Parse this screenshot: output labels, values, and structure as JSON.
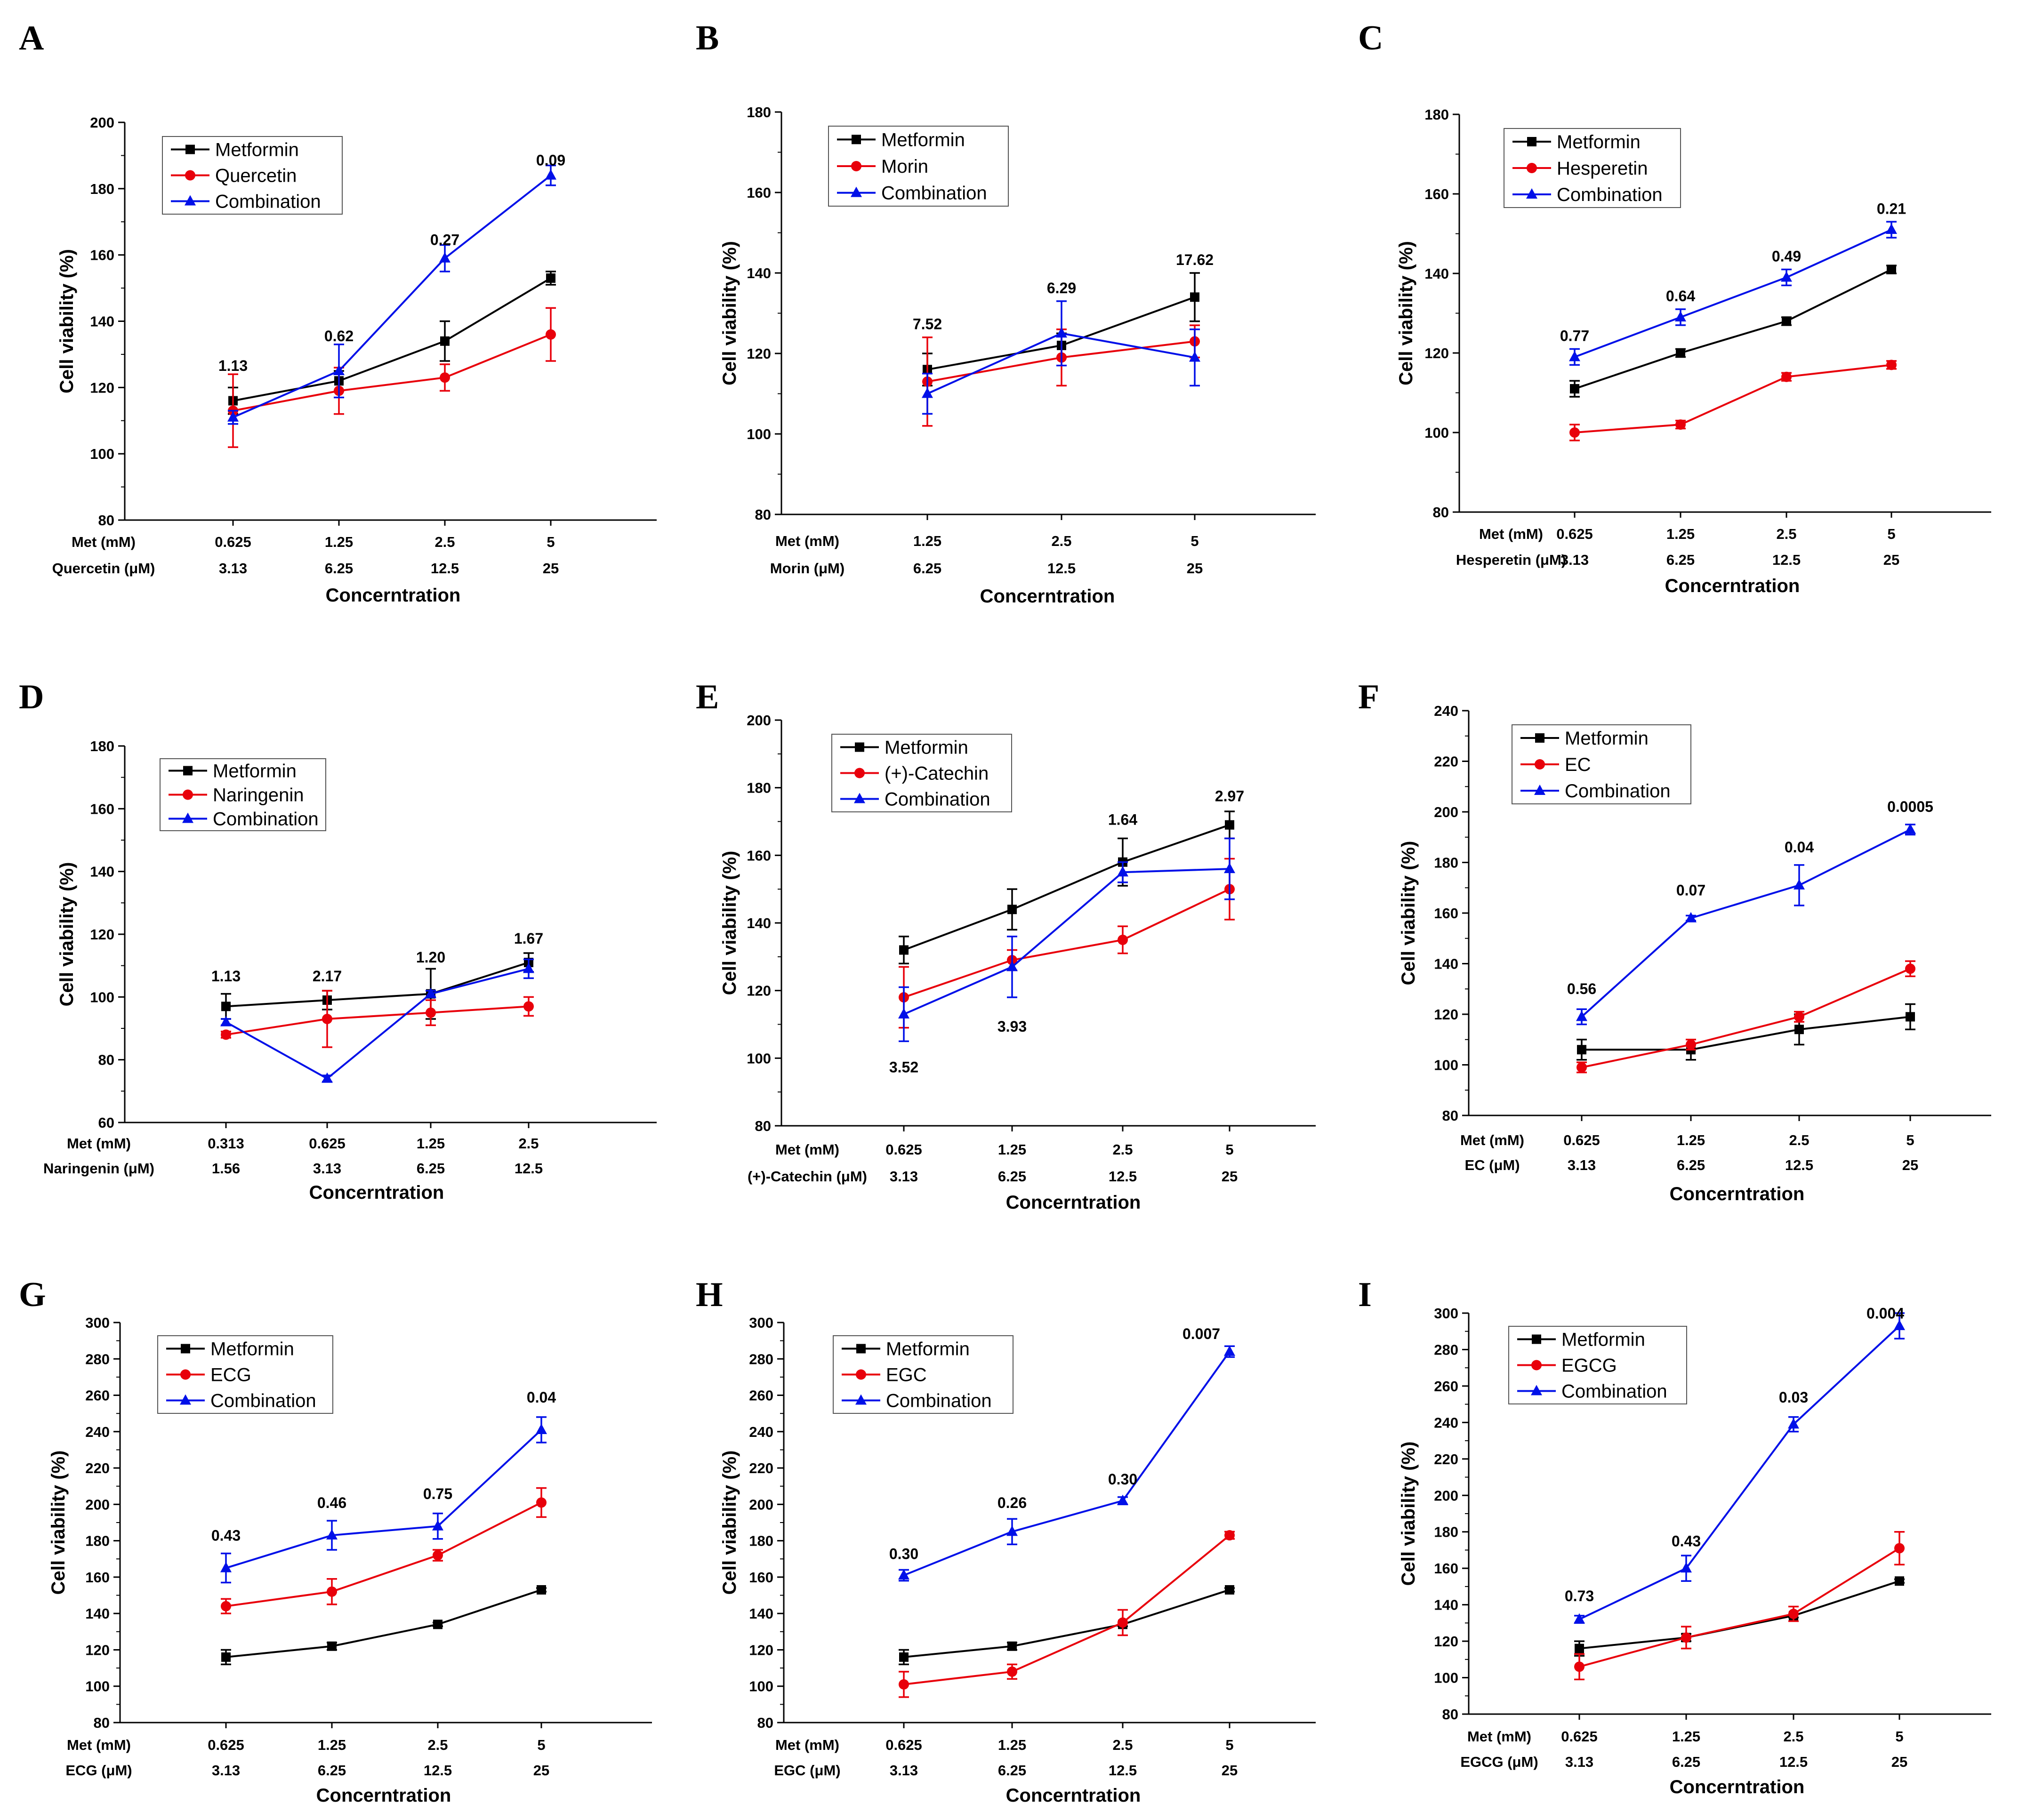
{
  "colors": {
    "metformin": "#000000",
    "flavonoid": "#e8000b",
    "combination": "#0010e8"
  },
  "xtitle": "Concerntration",
  "chart_data": [
    {
      "letter": "A",
      "type": "line",
      "ylabel": "Cell viability (%)",
      "xlabel": "Concerntration",
      "ylim": [
        80,
        200
      ],
      "yticks": [
        "80",
        "100",
        "120",
        "140",
        "160",
        "180",
        "200"
      ],
      "row1": {
        "name": "Met (mM)",
        "ticks": [
          "0.625",
          "1.25",
          "2.5",
          "5"
        ]
      },
      "row2": {
        "name": "Quercetin (μM)",
        "ticks": [
          "3.13",
          "6.25",
          "12.5",
          "25"
        ]
      },
      "legend": [
        "Metformin",
        "Quercetin",
        "Combination"
      ],
      "series": [
        {
          "name": "Metformin",
          "marker": "square",
          "values": [
            116,
            122,
            134,
            153
          ],
          "errors": [
            4,
            3,
            6,
            2
          ]
        },
        {
          "name": "Quercetin",
          "marker": "circle",
          "values": [
            113,
            119,
            123,
            136
          ],
          "errors": [
            11,
            7,
            4,
            8
          ]
        },
        {
          "name": "Combination",
          "marker": "triangle",
          "values": [
            111,
            125,
            159,
            184
          ],
          "errors": [
            2,
            8,
            4,
            3
          ]
        }
      ],
      "annotations": [
        {
          "i": 0,
          "text": "1.13",
          "y": 125,
          "pos": "above"
        },
        {
          "i": 1,
          "text": "0.62",
          "y": 134,
          "pos": "above"
        },
        {
          "i": 2,
          "text": "0.27",
          "y": 163,
          "pos": "above"
        },
        {
          "i": 3,
          "text": "0.09",
          "y": 187,
          "pos": "above"
        }
      ]
    },
    {
      "letter": "B",
      "type": "line",
      "ylabel": "Cell viability (%)",
      "xlabel": "Concerntration",
      "ylim": [
        80,
        180
      ],
      "yticks": [
        "80",
        "100",
        "120",
        "140",
        "160",
        "180"
      ],
      "row1": {
        "name": "Met (mM)",
        "ticks": [
          "1.25",
          "2.5",
          "5"
        ]
      },
      "row2": {
        "name": "Morin (μM)",
        "ticks": [
          "6.25",
          "12.5",
          "25"
        ]
      },
      "legend": [
        "Metformin",
        "Morin",
        "Combination"
      ],
      "series": [
        {
          "name": "Metformin",
          "marker": "square",
          "values": [
            116,
            122,
            134
          ],
          "errors": [
            4,
            3,
            6
          ]
        },
        {
          "name": "Morin",
          "marker": "circle",
          "values": [
            113,
            119,
            123
          ],
          "errors": [
            11,
            7,
            4
          ]
        },
        {
          "name": "Combination",
          "marker": "triangle",
          "values": [
            110,
            125,
            119
          ],
          "errors": [
            5,
            8,
            7
          ]
        }
      ],
      "annotations": [
        {
          "i": 0,
          "text": "7.52",
          "y": 126,
          "pos": "above"
        },
        {
          "i": 1,
          "text": "6.29",
          "y": 135,
          "pos": "above"
        },
        {
          "i": 2,
          "text": "17.62",
          "y": 142,
          "pos": "above"
        }
      ]
    },
    {
      "letter": "C",
      "type": "line",
      "ylabel": "Cell viability (%)",
      "xlabel": "Concerntration",
      "ylim": [
        80,
        180
      ],
      "yticks": [
        "80",
        "100",
        "120",
        "140",
        "160",
        "180"
      ],
      "row1": {
        "name": "Met (mM)",
        "ticks": [
          "0.625",
          "1.25",
          "2.5",
          "5"
        ]
      },
      "row2": {
        "name": "Hesperetin (μM)",
        "ticks": [
          "3.13",
          "6.25",
          "12.5",
          "25"
        ]
      },
      "legend": [
        "Metformin",
        "Hesperetin",
        "Combination"
      ],
      "series": [
        {
          "name": "Metformin",
          "marker": "square",
          "values": [
            111,
            120,
            128,
            141
          ],
          "errors": [
            2,
            1,
            1,
            1
          ]
        },
        {
          "name": "Hesperetin",
          "marker": "circle",
          "values": [
            100,
            102,
            114,
            117
          ],
          "errors": [
            2,
            1,
            1,
            1
          ]
        },
        {
          "name": "Combination",
          "marker": "triangle",
          "values": [
            119,
            129,
            139,
            151
          ],
          "errors": [
            2,
            2,
            2,
            2
          ]
        }
      ],
      "annotations": [
        {
          "i": 0,
          "text": "0.77",
          "y": 123,
          "pos": "above"
        },
        {
          "i": 1,
          "text": "0.64",
          "y": 133,
          "pos": "above"
        },
        {
          "i": 2,
          "text": "0.49",
          "y": 143,
          "pos": "above"
        },
        {
          "i": 3,
          "text": "0.21",
          "y": 155,
          "pos": "above"
        }
      ]
    },
    {
      "letter": "D",
      "type": "line",
      "ylabel": "Cell viability (%)",
      "xlabel": "Concerntration",
      "ylim": [
        60,
        180
      ],
      "yticks": [
        "60",
        "80",
        "100",
        "120",
        "140",
        "160",
        "180"
      ],
      "row1": {
        "name": "Met (mM)",
        "ticks": [
          "0.313",
          "0.625",
          "1.25",
          "2.5"
        ]
      },
      "row2": {
        "name": "Naringenin (μM)",
        "ticks": [
          "1.56",
          "3.13",
          "6.25",
          "12.5"
        ]
      },
      "legend": [
        "Metformin",
        "Naringenin",
        "Combination"
      ],
      "series": [
        {
          "name": "Metformin",
          "marker": "square",
          "values": [
            97,
            99,
            101,
            111
          ],
          "errors": [
            4,
            3,
            8,
            3
          ]
        },
        {
          "name": "Naringenin",
          "marker": "circle",
          "values": [
            88,
            93,
            95,
            97
          ],
          "errors": [
            1,
            9,
            4,
            3
          ]
        },
        {
          "name": "Combination",
          "marker": "triangle",
          "values": [
            92,
            74,
            101,
            109
          ],
          "errors": [
            1,
            1,
            1,
            3
          ]
        }
      ],
      "annotations": [
        {
          "i": 0,
          "text": "1.13",
          "y": 105,
          "pos": "above"
        },
        {
          "i": 1,
          "text": "2.17",
          "y": 105,
          "pos": "above"
        },
        {
          "i": 2,
          "text": "1.20",
          "y": 111,
          "pos": "above"
        },
        {
          "i": 3,
          "text": "1.67",
          "y": 117,
          "pos": "above"
        }
      ]
    },
    {
      "letter": "E",
      "type": "line",
      "ylabel": "Cell viability (%)",
      "xlabel": "Concerntration",
      "ylim": [
        80,
        200
      ],
      "yticks": [
        "80",
        "100",
        "120",
        "140",
        "160",
        "180",
        "200"
      ],
      "row1": {
        "name": "Met (mM)",
        "ticks": [
          "0.625",
          "1.25",
          "2.5",
          "5"
        ]
      },
      "row2": {
        "name": "(+)-Catechin (μM)",
        "ticks": [
          "3.13",
          "6.25",
          "12.5",
          "25"
        ]
      },
      "legend": [
        "Metformin",
        "(+)-Catechin",
        "Combination"
      ],
      "series": [
        {
          "name": "Metformin",
          "marker": "square",
          "values": [
            132,
            144,
            158,
            169
          ],
          "errors": [
            4,
            6,
            7,
            4
          ]
        },
        {
          "name": "(+)-Catechin",
          "marker": "circle",
          "values": [
            118,
            129,
            135,
            150
          ],
          "errors": [
            9,
            3,
            4,
            9
          ]
        },
        {
          "name": "Combination",
          "marker": "triangle",
          "values": [
            113,
            127,
            155,
            156
          ],
          "errors": [
            8,
            9,
            3,
            9
          ]
        }
      ],
      "annotations": [
        {
          "i": 0,
          "text": "3.52",
          "y": 100,
          "pos": "below"
        },
        {
          "i": 1,
          "text": "3.93",
          "y": 112,
          "pos": "below"
        },
        {
          "i": 2,
          "text": "1.64",
          "y": 169,
          "pos": "above"
        },
        {
          "i": 3,
          "text": "2.97",
          "y": 176,
          "pos": "above"
        }
      ]
    },
    {
      "letter": "F",
      "type": "line",
      "ylabel": "Cell viability (%)",
      "xlabel": "Concerntration",
      "ylim": [
        80,
        240
      ],
      "yticks": [
        "80",
        "100",
        "120",
        "140",
        "160",
        "180",
        "200",
        "220",
        "240"
      ],
      "row1": {
        "name": "Met (mM)",
        "ticks": [
          "0.625",
          "1.25",
          "2.5",
          "5"
        ]
      },
      "row2": {
        "name": "EC (μM)",
        "ticks": [
          "3.13",
          "6.25",
          "12.5",
          "25"
        ]
      },
      "legend": [
        "Metformin",
        "EC",
        "Combination"
      ],
      "series": [
        {
          "name": "Metformin",
          "marker": "square",
          "values": [
            106,
            106,
            114,
            119
          ],
          "errors": [
            4,
            4,
            6,
            5
          ]
        },
        {
          "name": "EC",
          "marker": "circle",
          "values": [
            99,
            108,
            119,
            138
          ],
          "errors": [
            2,
            2,
            2,
            3
          ]
        },
        {
          "name": "Combination",
          "marker": "triangle",
          "values": [
            119,
            158,
            171,
            193
          ],
          "errors": [
            3,
            1,
            8,
            2
          ]
        }
      ],
      "annotations": [
        {
          "i": 0,
          "text": "0.56",
          "y": 128,
          "pos": "above"
        },
        {
          "i": 1,
          "text": "0.07",
          "y": 167,
          "pos": "above"
        },
        {
          "i": 2,
          "text": "0.04",
          "y": 184,
          "pos": "above"
        },
        {
          "i": 3,
          "text": "0.0005",
          "y": 200,
          "pos": "above"
        }
      ]
    },
    {
      "letter": "G",
      "type": "line",
      "ylabel": "Cell viability (%)",
      "xlabel": "Concerntration",
      "ylim": [
        80,
        300
      ],
      "yticks": [
        "80",
        "100",
        "120",
        "140",
        "160",
        "180",
        "200",
        "220",
        "240",
        "260",
        "280",
        "300"
      ],
      "row1": {
        "name": "Met (mM)",
        "ticks": [
          "0.625",
          "1.25",
          "2.5",
          "5"
        ]
      },
      "row2": {
        "name": "ECG (μM)",
        "ticks": [
          "3.13",
          "6.25",
          "12.5",
          "25"
        ]
      },
      "legend": [
        "Metformin",
        "ECG",
        "Combination"
      ],
      "series": [
        {
          "name": "Metformin",
          "marker": "square",
          "values": [
            116,
            122,
            134,
            153
          ],
          "errors": [
            4,
            2,
            1,
            1
          ]
        },
        {
          "name": "ECG",
          "marker": "circle",
          "values": [
            144,
            152,
            172,
            201
          ],
          "errors": [
            4,
            7,
            3,
            8
          ]
        },
        {
          "name": "Combination",
          "marker": "triangle",
          "values": [
            165,
            183,
            188,
            241
          ],
          "errors": [
            8,
            8,
            7,
            7
          ]
        }
      ],
      "annotations": [
        {
          "i": 0,
          "text": "0.43",
          "y": 180,
          "pos": "above"
        },
        {
          "i": 1,
          "text": "0.46",
          "y": 198,
          "pos": "above"
        },
        {
          "i": 2,
          "text": "0.75",
          "y": 203,
          "pos": "above"
        },
        {
          "i": 3,
          "text": "0.04",
          "y": 256,
          "pos": "above"
        }
      ]
    },
    {
      "letter": "H",
      "type": "line",
      "ylabel": "Cell viability (%)",
      "xlabel": "Concerntration",
      "ylim": [
        80,
        300
      ],
      "yticks": [
        "80",
        "100",
        "120",
        "140",
        "160",
        "180",
        "200",
        "220",
        "240",
        "260",
        "280",
        "300"
      ],
      "row1": {
        "name": "Met (mM)",
        "ticks": [
          "0.625",
          "1.25",
          "2.5",
          "5"
        ]
      },
      "row2": {
        "name": "EGC (μM)",
        "ticks": [
          "3.13",
          "6.25",
          "12.5",
          "25"
        ]
      },
      "legend": [
        "Metformin",
        "EGC",
        "Combination"
      ],
      "series": [
        {
          "name": "Metformin",
          "marker": "square",
          "values": [
            116,
            122,
            134,
            153
          ],
          "errors": [
            4,
            2,
            1,
            1
          ]
        },
        {
          "name": "EGC",
          "marker": "circle",
          "values": [
            101,
            108,
            135,
            183
          ],
          "errors": [
            7,
            4,
            7,
            2
          ]
        },
        {
          "name": "Combination",
          "marker": "triangle",
          "values": [
            161,
            185,
            202,
            284
          ],
          "errors": [
            3,
            7,
            2,
            3
          ]
        }
      ],
      "annotations": [
        {
          "i": 0,
          "text": "0.30",
          "y": 170,
          "pos": "above"
        },
        {
          "i": 1,
          "text": "0.26",
          "y": 198,
          "pos": "above"
        },
        {
          "i": 2,
          "text": "0.30",
          "y": 211,
          "pos": "above"
        },
        {
          "i": 3,
          "text": "0.007",
          "y": 291,
          "pos": "above",
          "dx": -2
        }
      ]
    },
    {
      "letter": "I",
      "type": "line",
      "ylabel": "Cell viability (%)",
      "xlabel": "Concerntration",
      "ylim": [
        80,
        300
      ],
      "yticks": [
        "80",
        "100",
        "120",
        "140",
        "160",
        "180",
        "200",
        "220",
        "240",
        "260",
        "280",
        "300"
      ],
      "row1": {
        "name": "Met (mM)",
        "ticks": [
          "0.625",
          "1.25",
          "2.5",
          "5"
        ]
      },
      "row2": {
        "name": "EGCG (μM)",
        "ticks": [
          "3.13",
          "6.25",
          "12.5",
          "25"
        ]
      },
      "legend": [
        "Metformin",
        "EGCG",
        "Combination"
      ],
      "series": [
        {
          "name": "Metformin",
          "marker": "square",
          "values": [
            116,
            122,
            134,
            153
          ],
          "errors": [
            4,
            2,
            1,
            1
          ]
        },
        {
          "name": "EGCG",
          "marker": "circle",
          "values": [
            106,
            122,
            135,
            171
          ],
          "errors": [
            7,
            6,
            4,
            9
          ]
        },
        {
          "name": "Combination",
          "marker": "triangle",
          "values": [
            132,
            160,
            239,
            293
          ],
          "errors": [
            2,
            7,
            4,
            7
          ]
        }
      ],
      "annotations": [
        {
          "i": 0,
          "text": "0.73",
          "y": 142,
          "pos": "above"
        },
        {
          "i": 1,
          "text": "0.43",
          "y": 172,
          "pos": "above"
        },
        {
          "i": 2,
          "text": "0.03",
          "y": 251,
          "pos": "above"
        },
        {
          "i": 3,
          "text": "0.004",
          "y": 297,
          "pos": "above",
          "dx": -1
        }
      ]
    }
  ]
}
